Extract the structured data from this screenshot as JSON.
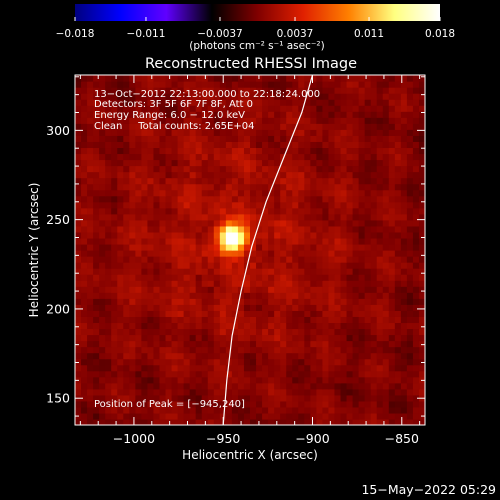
{
  "chart_data": {
    "type": "heatmap",
    "title": "Reconstructed RHESSI Image",
    "xlabel": "Heliocentric X (arcsec)",
    "ylabel": "Heliocentric Y (arcsec)",
    "xlim": [
      -1033,
      -837
    ],
    "ylim": [
      135,
      331
    ],
    "x_ticks": [
      -1000,
      -950,
      -900,
      -850
    ],
    "x_tick_labels": [
      "−1000",
      "−950",
      "−900",
      "−850"
    ],
    "y_ticks": [
      150,
      200,
      250,
      300
    ],
    "y_tick_labels": [
      "150",
      "200",
      "250",
      "300"
    ],
    "colorbar": {
      "range": [
        -0.018,
        0.018
      ],
      "ticks": [
        -0.018,
        -0.011,
        -0.0037,
        0.0037,
        0.011,
        0.018
      ],
      "tick_labels": [
        "−0.018",
        "−0.011",
        "−0.0037",
        "0.0037",
        "0.011",
        "0.018"
      ],
      "units": "(photons cm⁻² s⁻¹ asec⁻²)",
      "stops": [
        "#000080",
        "#0000ff",
        "#6000ff",
        "#000000",
        "#800000",
        "#e02000",
        "#ff8000",
        "#ffff80",
        "#ffffff"
      ]
    },
    "info_lines": [
      "13−Oct−2012 22:13:00.000 to 22:18:24.000",
      "Detectors: 3F 5F 6F 7F 8F, Att 0",
      "Energy Range: 6.0 − 12.0 keV",
      "Clean     Total counts: 2.65E+04"
    ],
    "peak_label": "Position of Peak = [−945,240]",
    "peak": {
      "x": -945,
      "y": 240,
      "value": 0.018
    },
    "limb_points": [
      [
        -950,
        135
      ],
      [
        -948,
        160
      ],
      [
        -945,
        185
      ],
      [
        -940,
        210
      ],
      [
        -934,
        235
      ],
      [
        -926,
        260
      ],
      [
        -916,
        285
      ],
      [
        -906,
        310
      ],
      [
        -900,
        331
      ]
    ],
    "footer_text": "15−May−2022 05:29"
  }
}
